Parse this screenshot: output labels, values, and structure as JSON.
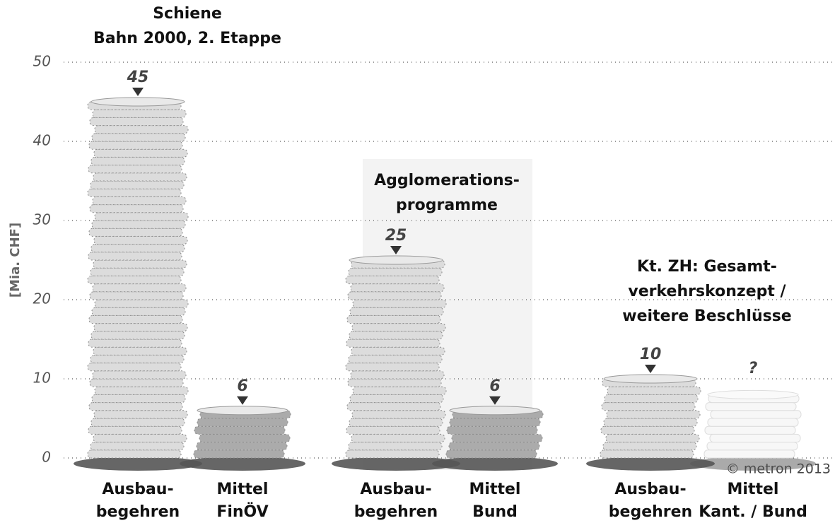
{
  "chart_data": {
    "type": "coin-stack",
    "y_label": "[Mia. CHF]",
    "credit": "© metron 2013",
    "group_titles": [
      [
        "Schiene",
        "Bahn 2000, 2. Etappe"
      ],
      [
        "Agglomerations-",
        "programme"
      ],
      [
        "Kt. ZH: Gesamt-",
        "verkehrskonzept /",
        "weitere Beschlüsse"
      ]
    ],
    "categories": [
      [
        "Ausbau-",
        "begehren"
      ],
      [
        "Mittel",
        "FinÖV"
      ],
      [
        "Ausbau-",
        "begehren"
      ],
      [
        "Mittel",
        "Bund"
      ],
      [
        "Ausbau-",
        "begehren"
      ],
      [
        "Mittel",
        "Kant. / Bund"
      ]
    ],
    "values": [
      45,
      6,
      25,
      6,
      10,
      null
    ],
    "value_labels": [
      "45",
      "6",
      "25",
      "6",
      "10",
      "?"
    ],
    "colors": [
      "#dcdcdc",
      "#ababab",
      "#dcdcdc",
      "#ababab",
      "#dcdcdc",
      "#f7f7f7"
    ],
    "ylim": [
      0,
      50
    ],
    "yticks": [
      0,
      10,
      20,
      30,
      40,
      50
    ],
    "grid": true
  }
}
